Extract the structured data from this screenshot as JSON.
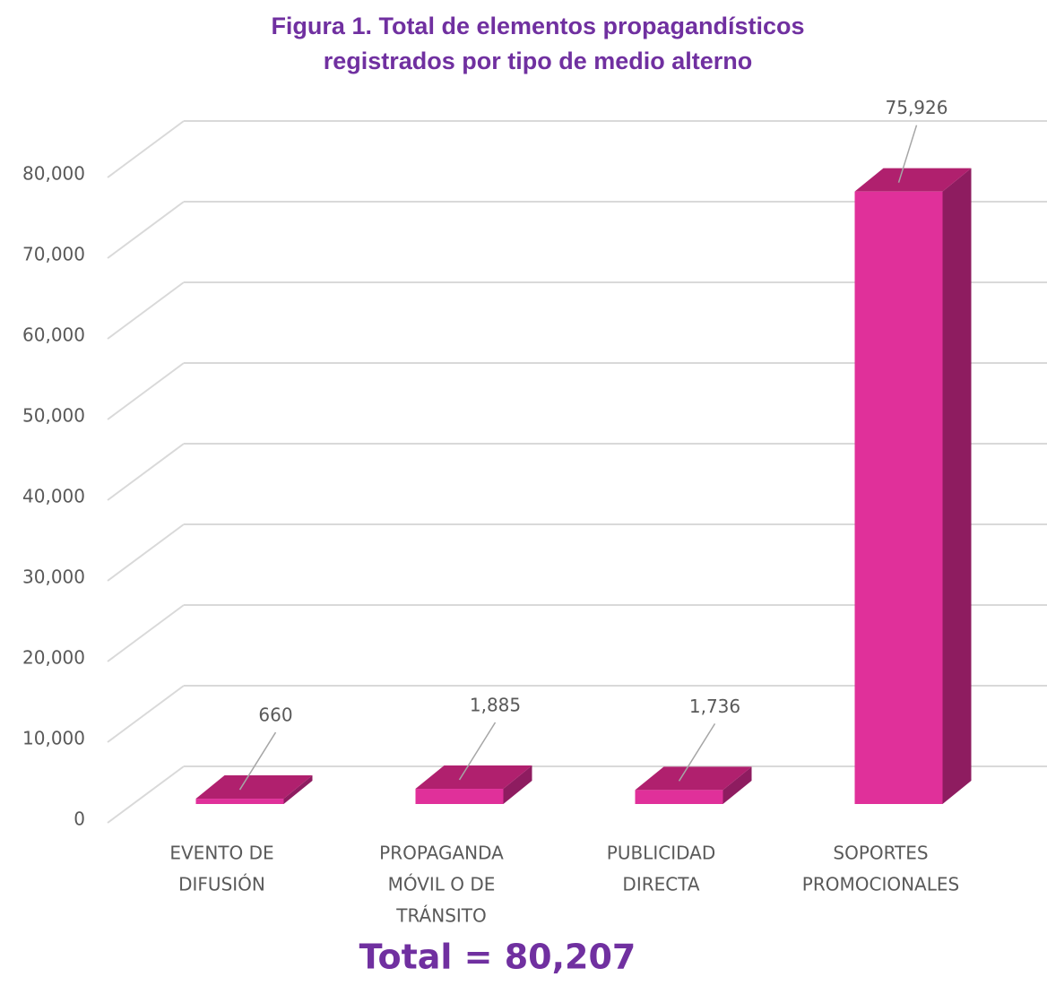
{
  "chart_data": {
    "type": "bar3d",
    "title": [
      "Figura 1. Total de elementos propagandísticos",
      "registrados por tipo de medio alterno"
    ],
    "categories": [
      [
        "EVENTO DE",
        "DIFUSIÓN"
      ],
      [
        "PROPAGANDA",
        "MÓVIL O DE",
        "TRÁNSITO"
      ],
      [
        "PUBLICIDAD",
        "DIRECTA"
      ],
      [
        "SOPORTES",
        "PROMOCIONALES"
      ]
    ],
    "values": [
      660,
      1885,
      1736,
      75926
    ],
    "value_labels": [
      "660",
      "1,885",
      "1,736",
      "75,926"
    ],
    "colors": {
      "front": "#e0309a",
      "top": "#b0206e",
      "side": "#8e1c60"
    },
    "ylim": [
      0,
      80000
    ],
    "yticks": [
      0,
      {
        "value": 10000,
        "label": "10,000"
      },
      {
        "value": 20000,
        "label": "20,000"
      },
      {
        "value": 30000,
        "label": "30,000"
      },
      {
        "value": 40000,
        "label": "40,000"
      },
      {
        "value": 50000,
        "label": "50,000"
      },
      {
        "value": 60000,
        "label": "60,000"
      },
      {
        "value": 70000,
        "label": "70,000"
      },
      {
        "value": 80000,
        "label": "80,000"
      }
    ],
    "grid": true,
    "annotation": "Total = 80,207"
  }
}
